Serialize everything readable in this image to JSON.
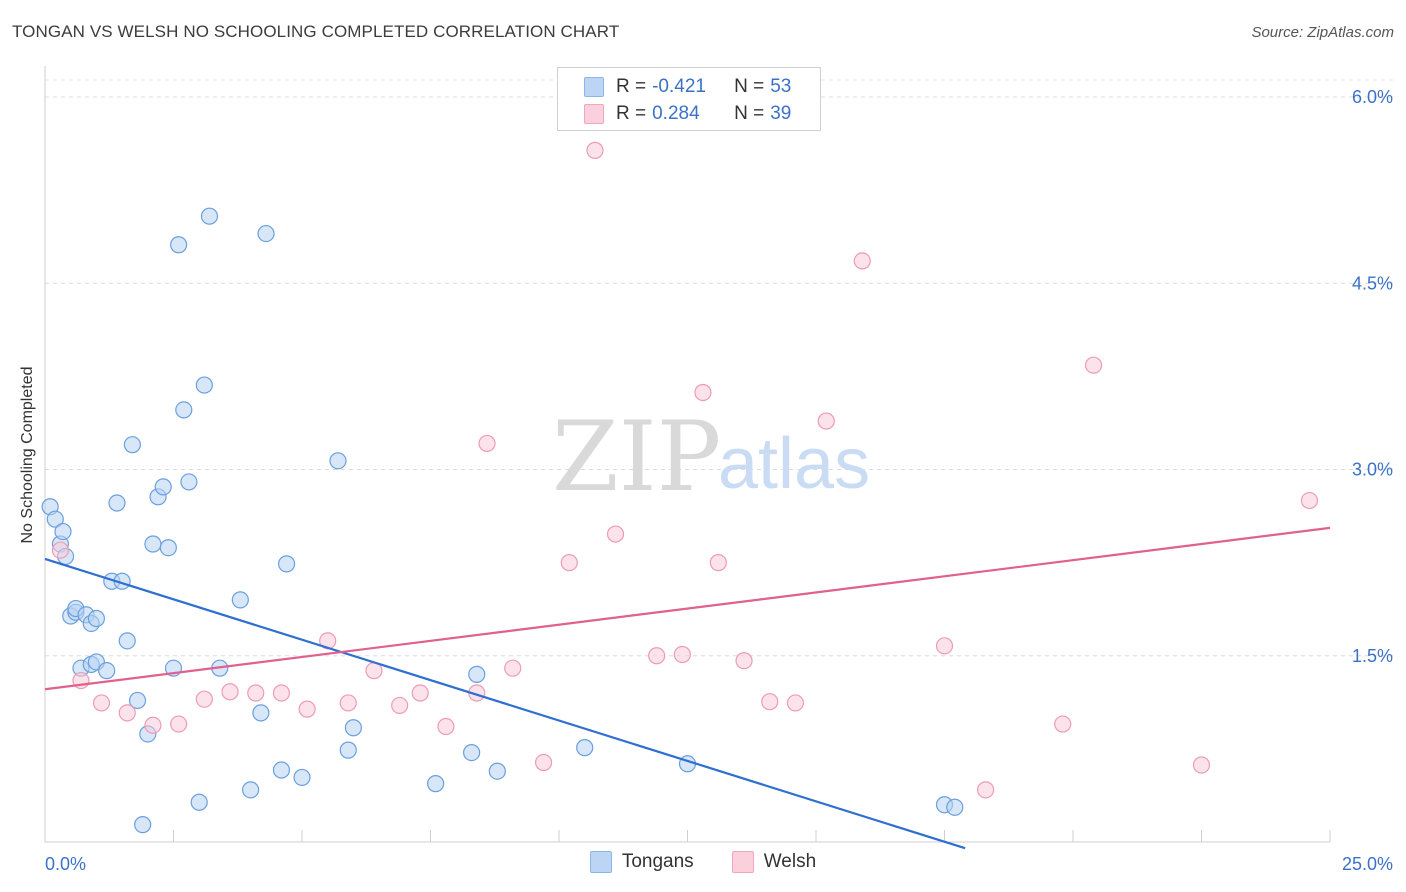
{
  "title": "TONGAN VS WELSH NO SCHOOLING COMPLETED CORRELATION CHART",
  "source": "Source: ZipAtlas.com",
  "watermark": {
    "zip": "ZIP",
    "atlas": "atlas"
  },
  "legend": {
    "rows": [
      {
        "r_label": "R =",
        "r_value": "-0.421",
        "n_label": "N =",
        "n_value": "53",
        "color": "#a9c8f0"
      },
      {
        "r_label": "R =",
        "r_value": "0.284",
        "n_label": "N =",
        "n_value": "39",
        "color": "#f7b9cc"
      }
    ]
  },
  "bottom_legend": [
    {
      "name": "Tongans",
      "color": "#a9c8f0"
    },
    {
      "name": "Welsh",
      "color": "#f7b9cc"
    }
  ],
  "chart_data": {
    "type": "scatter",
    "title": "TONGAN VS WELSH NO SCHOOLING COMPLETED CORRELATION CHART",
    "xlabel": "",
    "ylabel": "No Schooling Completed",
    "xlim": [
      0,
      25
    ],
    "ylim": [
      0,
      6.0
    ],
    "x_tick_labels": [
      "0.0%",
      "25.0%"
    ],
    "y_ticks": [
      1.5,
      3.0,
      4.5,
      6.0
    ],
    "y_tick_labels": [
      "1.5%",
      "3.0%",
      "4.5%",
      "6.0%"
    ],
    "grid": true,
    "series": [
      {
        "name": "Tongans",
        "color": "#6a9fdf",
        "fill": "#b8d3f3",
        "trend": {
          "x0": 0.0,
          "y0": 2.28,
          "x1": 17.9,
          "y1": -0.05,
          "color": "#2e6fd0"
        },
        "points": [
          [
            0.1,
            2.7
          ],
          [
            0.2,
            2.6
          ],
          [
            0.3,
            2.4
          ],
          [
            0.35,
            2.5
          ],
          [
            0.4,
            2.3
          ],
          [
            0.5,
            1.82
          ],
          [
            0.6,
            1.85
          ],
          [
            0.6,
            1.88
          ],
          [
            0.8,
            1.83
          ],
          [
            0.9,
            1.76
          ],
          [
            1.0,
            1.8
          ],
          [
            0.7,
            1.4
          ],
          [
            0.9,
            1.43
          ],
          [
            1.0,
            1.45
          ],
          [
            1.2,
            1.38
          ],
          [
            1.3,
            2.1
          ],
          [
            1.5,
            2.1
          ],
          [
            1.4,
            2.73
          ],
          [
            1.6,
            1.62
          ],
          [
            1.7,
            3.2
          ],
          [
            1.8,
            1.14
          ],
          [
            2.0,
            0.87
          ],
          [
            2.1,
            2.4
          ],
          [
            2.2,
            2.78
          ],
          [
            2.3,
            2.86
          ],
          [
            2.4,
            2.37
          ],
          [
            2.5,
            1.4
          ],
          [
            2.6,
            4.81
          ],
          [
            2.7,
            3.48
          ],
          [
            2.8,
            2.9
          ],
          [
            3.0,
            0.32
          ],
          [
            3.1,
            3.68
          ],
          [
            3.2,
            5.04
          ],
          [
            3.4,
            1.4
          ],
          [
            3.8,
            1.95
          ],
          [
            4.0,
            0.42
          ],
          [
            4.2,
            1.04
          ],
          [
            4.3,
            4.9
          ],
          [
            4.6,
            0.58
          ],
          [
            4.7,
            2.24
          ],
          [
            5.0,
            0.52
          ],
          [
            5.7,
            3.07
          ],
          [
            5.9,
            0.74
          ],
          [
            6.0,
            0.92
          ],
          [
            7.6,
            0.47
          ],
          [
            8.3,
            0.72
          ],
          [
            8.4,
            1.35
          ],
          [
            8.8,
            0.57
          ],
          [
            10.5,
            0.76
          ],
          [
            12.5,
            0.63
          ],
          [
            17.5,
            0.3
          ],
          [
            17.7,
            0.28
          ],
          [
            1.9,
            0.14
          ]
        ]
      },
      {
        "name": "Welsh",
        "color": "#ee9bb4",
        "fill": "#f9cbd9",
        "trend": {
          "x0": 0.0,
          "y0": 1.23,
          "x1": 25.0,
          "y1": 2.53,
          "color": "#e0608e"
        },
        "points": [
          [
            0.3,
            2.35
          ],
          [
            0.7,
            1.3
          ],
          [
            1.1,
            1.12
          ],
          [
            1.6,
            1.04
          ],
          [
            2.1,
            0.94
          ],
          [
            2.6,
            0.95
          ],
          [
            3.1,
            1.15
          ],
          [
            3.6,
            1.21
          ],
          [
            4.1,
            1.2
          ],
          [
            4.6,
            1.2
          ],
          [
            5.1,
            1.07
          ],
          [
            5.5,
            1.62
          ],
          [
            5.9,
            1.12
          ],
          [
            6.4,
            1.38
          ],
          [
            6.9,
            1.1
          ],
          [
            7.3,
            1.2
          ],
          [
            7.8,
            0.93
          ],
          [
            8.4,
            1.2
          ],
          [
            8.6,
            3.21
          ],
          [
            9.1,
            1.4
          ],
          [
            9.7,
            0.64
          ],
          [
            10.2,
            2.25
          ],
          [
            10.7,
            5.57
          ],
          [
            11.1,
            2.48
          ],
          [
            11.9,
            1.5
          ],
          [
            12.4,
            1.51
          ],
          [
            12.8,
            3.62
          ],
          [
            13.1,
            2.25
          ],
          [
            13.6,
            1.46
          ],
          [
            14.1,
            1.13
          ],
          [
            14.6,
            1.12
          ],
          [
            15.2,
            3.39
          ],
          [
            15.9,
            4.68
          ],
          [
            17.5,
            1.58
          ],
          [
            18.3,
            0.42
          ],
          [
            19.8,
            0.95
          ],
          [
            20.4,
            3.84
          ],
          [
            22.5,
            0.62
          ],
          [
            24.6,
            2.75
          ]
        ]
      }
    ]
  }
}
